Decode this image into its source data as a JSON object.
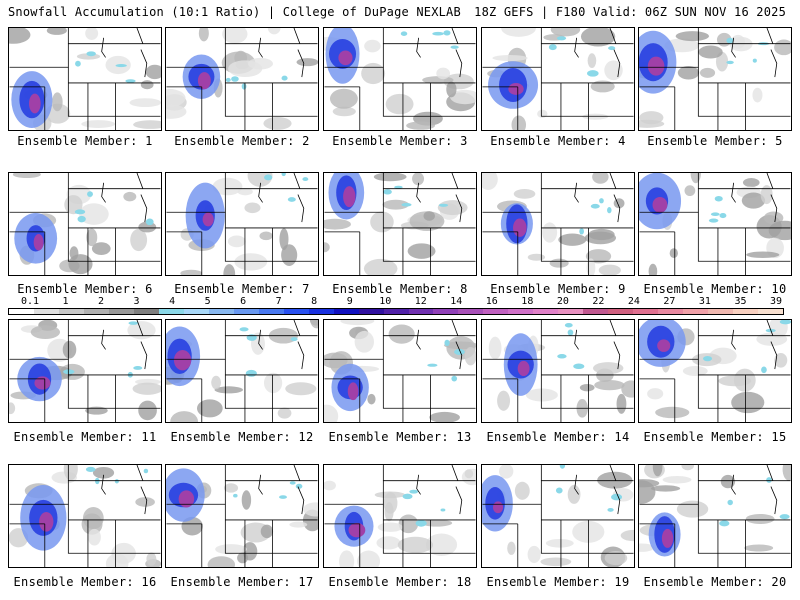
{
  "header": {
    "title": "Snowfall Accumulation (10:1 Ratio) | College of DuPage NEXLAB",
    "valid": "18Z GEFS | F180 Valid: 06Z SUN NOV 16 2025"
  },
  "member_label_prefix": "Ensemble Member:",
  "members": [
    "1",
    "2",
    "3",
    "4",
    "5",
    "6",
    "7",
    "8",
    "9",
    "10",
    "11",
    "12",
    "13",
    "14",
    "15",
    "16",
    "17",
    "18",
    "19",
    "20"
  ],
  "legend": {
    "ticks": [
      "0.1",
      "1",
      "2",
      "3",
      "4",
      "5",
      "6",
      "7",
      "8",
      "9",
      "10",
      "12",
      "14",
      "16",
      "18",
      "20",
      "22",
      "24",
      "27",
      "31",
      "35",
      "39"
    ],
    "colors": [
      "#ffffff",
      "#e0e0e0",
      "#c8c8c8",
      "#b0b0b0",
      "#989898",
      "#7e7e7e",
      "#8ad8e8",
      "#a8d8f8",
      "#88b8f0",
      "#6898f0",
      "#4878f0",
      "#2850f0",
      "#1830e0",
      "#1010c0",
      "#3010a0",
      "#5020a8",
      "#7030b0",
      "#9040b8",
      "#a850b8",
      "#c060c0",
      "#d070c8",
      "#e080c8",
      "#e890c0",
      "#c05890",
      "#d06080",
      "#e07090",
      "#e888a0",
      "#f0a0a8",
      "#f0b8b0",
      "#f8d0c0",
      "#f8e0d0"
    ]
  }
}
